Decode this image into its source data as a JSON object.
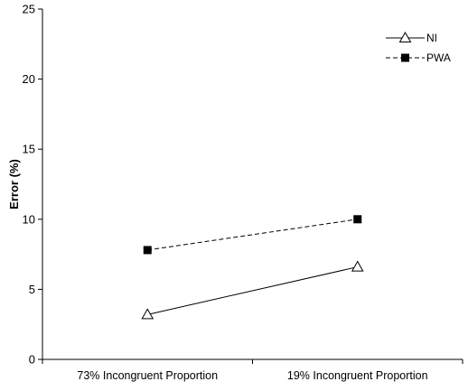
{
  "chart_data": {
    "type": "line",
    "title": "",
    "xlabel": "",
    "ylabel": "Error (%)",
    "categories": [
      "73% Incongruent Proportion",
      "19% Incongruent Proportion"
    ],
    "ylim": [
      0,
      25
    ],
    "yticks": [
      "0",
      "5",
      "10",
      "15",
      "20",
      "25"
    ],
    "grid": false,
    "legend_position": "top-right",
    "series": [
      {
        "name": "NI",
        "values": [
          3.2,
          6.6
        ],
        "marker": "open-triangle",
        "line_style": "solid",
        "color": "#000000"
      },
      {
        "name": "PWA",
        "values": [
          7.8,
          10.0
        ],
        "marker": "filled-square",
        "line_style": "dashed",
        "color": "#000000"
      }
    ]
  }
}
